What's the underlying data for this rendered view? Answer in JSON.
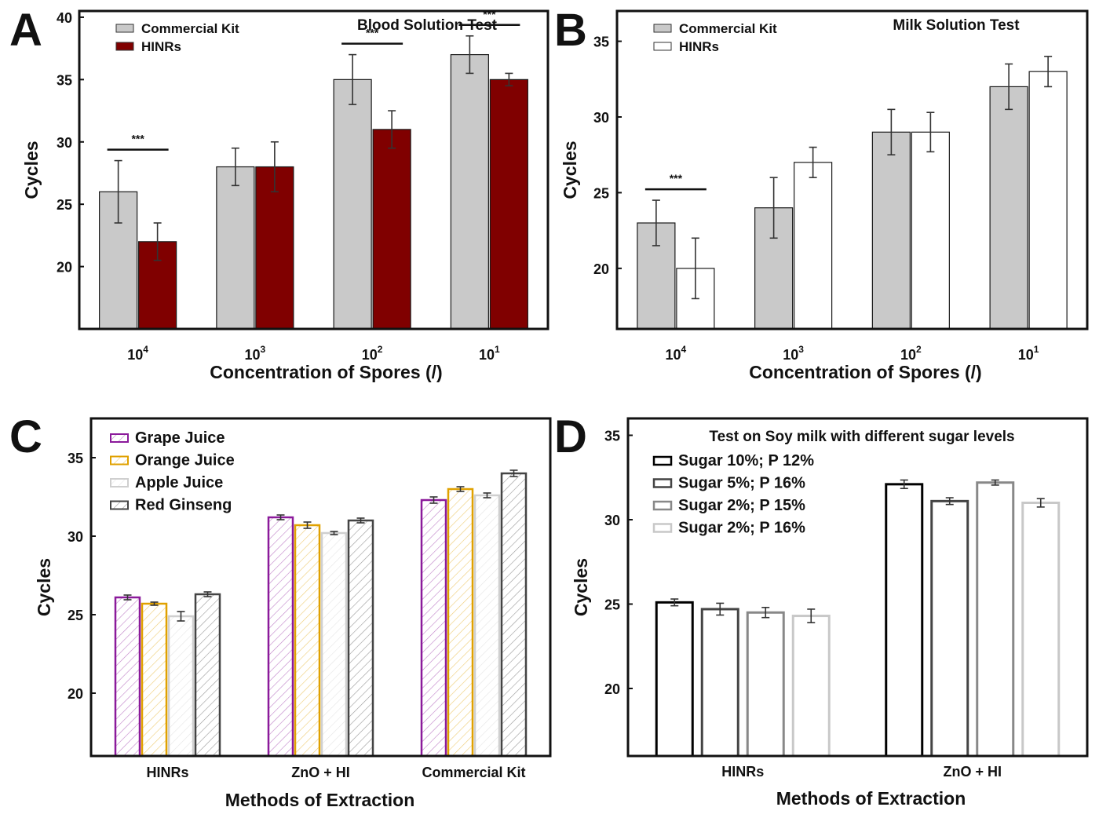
{
  "chart_data": [
    {
      "panel": "A",
      "type": "bar",
      "title": "Blood Solution Test",
      "xlabel": "Concentration of Spores (/)",
      "ylabel": "Cycles",
      "ylim": [
        15,
        40.5
      ],
      "yticks": [
        20,
        25,
        30,
        35,
        40
      ],
      "categories": [
        {
          "base": "10",
          "exp": "4"
        },
        {
          "base": "10",
          "exp": "3"
        },
        {
          "base": "10",
          "exp": "2"
        },
        {
          "base": "10",
          "exp": "1"
        }
      ],
      "series": [
        {
          "name": "Commercial Kit",
          "color": "#c9c9c9",
          "hatch": false,
          "values": [
            26,
            28,
            35,
            37
          ],
          "errors": [
            2.5,
            1.5,
            2,
            1.5
          ]
        },
        {
          "name": "HINRs",
          "color": "#800000",
          "hatch": false,
          "values": [
            22,
            28,
            31,
            35
          ],
          "errors": [
            1.5,
            2,
            1.5,
            0.5
          ]
        }
      ],
      "significance": [
        {
          "category": 0,
          "label": "***"
        },
        {
          "category": 2,
          "label": "***"
        },
        {
          "category": 3,
          "label": "***"
        }
      ],
      "legend_position": "top-left"
    },
    {
      "panel": "B",
      "type": "bar",
      "title": "Milk Solution Test",
      "xlabel": "Concentration of Spores (/)",
      "ylabel": "Cycles",
      "ylim": [
        16,
        37
      ],
      "yticks": [
        20,
        25,
        30,
        35
      ],
      "categories": [
        {
          "base": "10",
          "exp": "4"
        },
        {
          "base": "10",
          "exp": "3"
        },
        {
          "base": "10",
          "exp": "2"
        },
        {
          "base": "10",
          "exp": "1"
        }
      ],
      "series": [
        {
          "name": "Commercial Kit",
          "color": "#c9c9c9",
          "hatch": false,
          "values": [
            23,
            24,
            29,
            32
          ],
          "errors": [
            1.5,
            2,
            1.5,
            1.5
          ]
        },
        {
          "name": "HINRs",
          "color": "#ffffff",
          "hatch": false,
          "values": [
            20,
            27,
            29,
            33
          ],
          "errors": [
            2,
            1,
            1.3,
            1
          ]
        }
      ],
      "significance": [
        {
          "category": 0,
          "label": "***"
        }
      ],
      "legend_position": "top-left"
    },
    {
      "panel": "C",
      "type": "bar",
      "title": "",
      "xlabel": "Methods of Extraction",
      "ylabel": "Cycles",
      "ylim": [
        16,
        37.5
      ],
      "yticks": [
        20,
        25,
        30,
        35
      ],
      "categories": [
        "HINRs",
        "ZnO + HI",
        "Commercial Kit"
      ],
      "series": [
        {
          "name": "Grape Juice",
          "color": "#8b1a9b",
          "hatch": true,
          "values": [
            26.1,
            31.2,
            32.3
          ],
          "errors": [
            0.15,
            0.15,
            0.2
          ]
        },
        {
          "name": "Orange Juice",
          "color": "#e0a100",
          "hatch": true,
          "values": [
            25.7,
            30.7,
            33.0
          ],
          "errors": [
            0.1,
            0.2,
            0.15
          ]
        },
        {
          "name": "Apple Juice",
          "color": "#cfcfcf",
          "hatch": true,
          "values": [
            24.9,
            30.2,
            32.6
          ],
          "errors": [
            0.3,
            0.1,
            0.15
          ]
        },
        {
          "name": "Red Ginseng",
          "color": "#444444",
          "hatch": true,
          "values": [
            26.3,
            31.0,
            34.0
          ],
          "errors": [
            0.15,
            0.15,
            0.2
          ]
        }
      ],
      "legend_position": "top-left"
    },
    {
      "panel": "D",
      "type": "bar",
      "title": "Test on Soy milk with different sugar levels",
      "xlabel": "Methods of Extraction",
      "ylabel": "Cycles",
      "ylim": [
        16,
        36
      ],
      "yticks": [
        20,
        25,
        30,
        35
      ],
      "categories": [
        "HINRs",
        "ZnO + HI"
      ],
      "series": [
        {
          "name": "Sugar 10%; P 12%",
          "color": "#000000",
          "hatch": false,
          "values": [
            25.1,
            32.1
          ],
          "errors": [
            0.2,
            0.25
          ]
        },
        {
          "name": "Sugar 5%; P 16%",
          "color": "#444444",
          "hatch": false,
          "values": [
            24.7,
            31.1
          ],
          "errors": [
            0.35,
            0.2
          ]
        },
        {
          "name": "Sugar 2%; P 15%",
          "color": "#888888",
          "hatch": false,
          "values": [
            24.5,
            32.2
          ],
          "errors": [
            0.3,
            0.15
          ]
        },
        {
          "name": "Sugar 2%; P 16%",
          "color": "#c8c8c8",
          "hatch": false,
          "values": [
            24.3,
            31.0
          ],
          "errors": [
            0.4,
            0.25
          ]
        }
      ],
      "legend_position": "top-left"
    }
  ]
}
